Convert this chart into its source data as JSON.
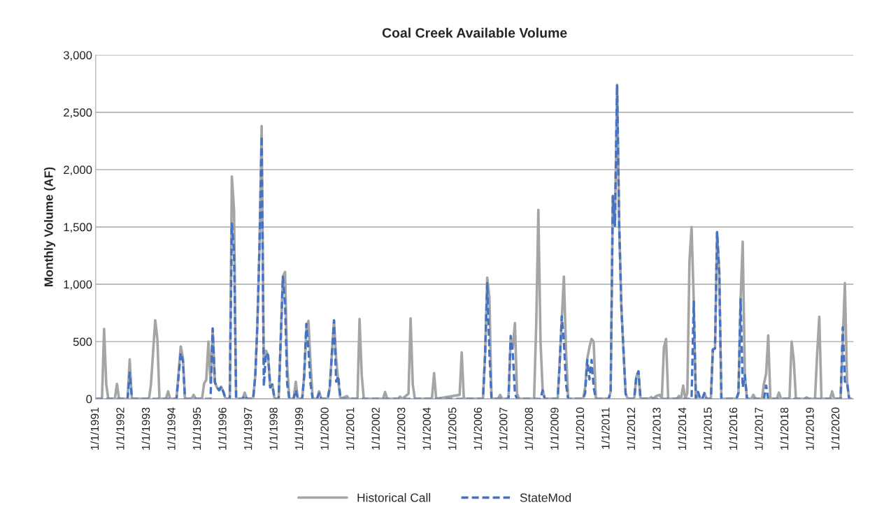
{
  "chart_data": {
    "type": "line",
    "title": "Coal Creek Available Volume",
    "ylabel": "Monthly Volume (AF)",
    "xlim": [
      "1991-01-01",
      "2020-09-01"
    ],
    "xticks": [
      {
        "value": "1991-01-01",
        "label": "1/1/1991"
      },
      {
        "value": "1992-01-01",
        "label": "1/1/1992"
      },
      {
        "value": "1993-01-01",
        "label": "1/1/1993"
      },
      {
        "value": "1994-01-01",
        "label": "1/1/1994"
      },
      {
        "value": "1995-01-01",
        "label": "1/1/1995"
      },
      {
        "value": "1996-01-01",
        "label": "1/1/1996"
      },
      {
        "value": "1997-01-01",
        "label": "1/1/1997"
      },
      {
        "value": "1998-01-01",
        "label": "1/1/1998"
      },
      {
        "value": "1999-01-01",
        "label": "1/1/1999"
      },
      {
        "value": "2000-01-01",
        "label": "1/1/2000"
      },
      {
        "value": "2001-01-01",
        "label": "1/1/2001"
      },
      {
        "value": "2002-01-01",
        "label": "1/1/2002"
      },
      {
        "value": "2003-01-01",
        "label": "1/1/2003"
      },
      {
        "value": "2004-01-01",
        "label": "1/1/2004"
      },
      {
        "value": "2005-01-01",
        "label": "1/1/2005"
      },
      {
        "value": "2006-01-01",
        "label": "1/1/2006"
      },
      {
        "value": "2007-01-01",
        "label": "1/1/2007"
      },
      {
        "value": "2008-01-01",
        "label": "1/1/2008"
      },
      {
        "value": "2009-01-01",
        "label": "1/1/2009"
      },
      {
        "value": "2010-01-01",
        "label": "1/1/2010"
      },
      {
        "value": "2011-01-01",
        "label": "1/1/2011"
      },
      {
        "value": "2012-01-01",
        "label": "1/1/2012"
      },
      {
        "value": "2013-01-01",
        "label": "1/1/2013"
      },
      {
        "value": "2014-01-01",
        "label": "1/1/2014"
      },
      {
        "value": "2015-01-01",
        "label": "1/1/2015"
      },
      {
        "value": "2016-01-01",
        "label": "1/1/2016"
      },
      {
        "value": "2017-01-01",
        "label": "1/1/2017"
      },
      {
        "value": "2018-01-01",
        "label": "1/1/2018"
      },
      {
        "value": "2019-01-01",
        "label": "1/1/2019"
      },
      {
        "value": "2020-01-01",
        "label": "1/1/2020"
      }
    ],
    "ylim": [
      0,
      3000
    ],
    "yticks": [
      0,
      500,
      {
        "value": 1000,
        "label": "1,000"
      },
      {
        "value": 1500,
        "label": "1,500"
      },
      {
        "value": 2000,
        "label": "2,000"
      },
      {
        "value": 2500,
        "label": "2,500"
      },
      {
        "value": 3000,
        "label": "3,000"
      }
    ],
    "grid": "y",
    "legend": "bottom",
    "marker": "none",
    "series": [
      {
        "name": "Historical Call",
        "color": "#a5a5a5",
        "line_style": "solid",
        "x": [
          "1991-01",
          "1991-04",
          "1991-05",
          "1991-06",
          "1991-07",
          "1991-10",
          "1991-11",
          "1991-12",
          "1992-04",
          "1992-05",
          "1992-06",
          "1993-02",
          "1993-03",
          "1993-05",
          "1993-06",
          "1993-07",
          "1993-10",
          "1993-11",
          "1993-12",
          "1994-03",
          "1994-05",
          "1994-06",
          "1994-07",
          "1994-10",
          "1994-11",
          "1994-12",
          "1995-03",
          "1995-04",
          "1995-05",
          "1995-06",
          "1995-07",
          "1995-08",
          "1995-09",
          "1995-10",
          "1995-11",
          "1995-12",
          "1996-01",
          "1996-02",
          "1996-04",
          "1996-05",
          "1996-06",
          "1996-07",
          "1996-10",
          "1996-11",
          "1996-12",
          "1997-03",
          "1997-04",
          "1997-05",
          "1997-06",
          "1997-07",
          "1997-08",
          "1997-09",
          "1997-10",
          "1997-11",
          "1997-12",
          "1998-01",
          "1998-03",
          "1998-05",
          "1998-06",
          "1998-07",
          "1998-08",
          "1998-10",
          "1998-11",
          "1998-12",
          "1999-02",
          "1999-03",
          "1999-04",
          "1999-05",
          "1999-06",
          "1999-07",
          "1999-09",
          "1999-10",
          "1999-11",
          "2000-02",
          "2000-03",
          "2000-04",
          "2000-05",
          "2000-06",
          "2000-07",
          "2000-08",
          "2000-11",
          "2000-12",
          "2001-04",
          "2001-05",
          "2001-06",
          "2001-07",
          "2002-04",
          "2002-05",
          "2002-06",
          "2002-11",
          "2002-12",
          "2003-01",
          "2003-04",
          "2003-05",
          "2003-06",
          "2003-07",
          "2004-03",
          "2004-04",
          "2004-05",
          "2005-04",
          "2005-05",
          "2005-06",
          "2006-03",
          "2006-04",
          "2006-05",
          "2006-06",
          "2006-07",
          "2006-10",
          "2006-11",
          "2006-12",
          "2007-03",
          "2007-04",
          "2007-05",
          "2007-06",
          "2007-07",
          "2007-08",
          "2008-03",
          "2008-04",
          "2008-05",
          "2008-06",
          "2008-07",
          "2008-08",
          "2009-02",
          "2009-03",
          "2009-04",
          "2009-05",
          "2009-06",
          "2009-07",
          "2010-02",
          "2010-03",
          "2010-04",
          "2010-05",
          "2010-06",
          "2010-07",
          "2010-08",
          "2011-02",
          "2011-03",
          "2011-04",
          "2011-05",
          "2011-06",
          "2011-07",
          "2011-08",
          "2011-09",
          "2011-10",
          "2011-11",
          "2012-02",
          "2012-03",
          "2012-04",
          "2012-05",
          "2012-09",
          "2012-10",
          "2012-11",
          "2012-12",
          "2013-01",
          "2013-02",
          "2013-03",
          "2013-04",
          "2013-05",
          "2013-06",
          "2013-10",
          "2013-11",
          "2013-12",
          "2014-01",
          "2014-02",
          "2014-03",
          "2014-04",
          "2014-05",
          "2014-06",
          "2014-07",
          "2014-08",
          "2014-09",
          "2014-10",
          "2014-11",
          "2014-12",
          "2015-02",
          "2015-03",
          "2015-04",
          "2015-05",
          "2015-06",
          "2015-07",
          "2016-02",
          "2016-03",
          "2016-04",
          "2016-05",
          "2016-06",
          "2016-07",
          "2016-09",
          "2016-10",
          "2016-11",
          "2017-02",
          "2017-03",
          "2017-04",
          "2017-05",
          "2017-06",
          "2017-09",
          "2017-10",
          "2017-11",
          "2018-03",
          "2018-04",
          "2018-05",
          "2018-06",
          "2018-10",
          "2018-11",
          "2018-12",
          "2019-03",
          "2019-04",
          "2019-05",
          "2019-06",
          "2019-10",
          "2019-11",
          "2019-12",
          "2020-03",
          "2020-04",
          "2020-05",
          "2020-06",
          "2020-07",
          "2020-08"
        ],
        "values": [
          0,
          0,
          610,
          125,
          0,
          0,
          130,
          0,
          0,
          345,
          0,
          0,
          125,
          686,
          523,
          0,
          0,
          65,
          0,
          0,
          458,
          360,
          0,
          0,
          35,
          0,
          0,
          136,
          167,
          500,
          140,
          610,
          146,
          100,
          75,
          106,
          60,
          0,
          0,
          1940,
          1650,
          0,
          0,
          55,
          0,
          0,
          200,
          650,
          1350,
          2380,
          300,
          420,
          380,
          100,
          125,
          0,
          0,
          1070,
          1107,
          300,
          0,
          0,
          150,
          0,
          0,
          200,
          600,
          680,
          300,
          0,
          0,
          65,
          0,
          0,
          100,
          400,
          680,
          350,
          150,
          0,
          25,
          0,
          0,
          696,
          207,
          0,
          0,
          60,
          0,
          0,
          20,
          0,
          45,
          702,
          126,
          0,
          0,
          225,
          0,
          35,
          405,
          0,
          0,
          400,
          1058,
          880,
          0,
          0,
          35,
          0,
          0,
          520,
          450,
          661,
          45,
          0,
          0,
          660,
          1648,
          500,
          80,
          0,
          0,
          300,
          700,
          1066,
          410,
          0,
          0,
          100,
          350,
          450,
          523,
          500,
          0,
          0,
          65,
          1770,
          1510,
          2741,
          1510,
          800,
          411,
          45,
          0,
          0,
          190,
          240,
          0,
          0,
          15,
          0,
          20,
          30,
          35,
          0,
          450,
          523,
          0,
          0,
          25,
          0,
          116,
          0,
          50,
          1205,
          1500,
          850,
          0,
          60,
          0,
          0,
          50,
          0,
          0,
          430,
          440,
          1455,
          1100,
          0,
          0,
          50,
          869,
          1372,
          200,
          0,
          0,
          35,
          0,
          0,
          130,
          220,
          553,
          0,
          0,
          55,
          0,
          0,
          500,
          340,
          0,
          0,
          14,
          0,
          0,
          400,
          716,
          0,
          0,
          65,
          0,
          0,
          510,
          1011,
          150,
          0,
          0
        ]
      },
      {
        "name": "StateMod",
        "color": "#4472c4",
        "line_style": "dashed",
        "x": [
          "1991-01",
          "1992-04",
          "1992-05",
          "1992-06",
          "1994-03",
          "1994-05",
          "1994-06",
          "1994-07",
          "1995-07",
          "1995-08",
          "1995-09",
          "1995-10",
          "1995-11",
          "1995-12",
          "1996-01",
          "1996-02",
          "1996-04",
          "1996-05",
          "1996-06",
          "1996-07",
          "1996-10",
          "1996-11",
          "1996-12",
          "1997-03",
          "1997-04",
          "1997-05",
          "1997-06",
          "1997-07",
          "1997-08",
          "1997-09",
          "1997-10",
          "1997-11",
          "1997-12",
          "1998-01",
          "1998-03",
          "1998-05",
          "1998-06",
          "1998-07",
          "1998-08",
          "1998-10",
          "1998-11",
          "1998-12",
          "1999-02",
          "1999-03",
          "1999-04",
          "1999-05",
          "1999-06",
          "1999-07",
          "1999-09",
          "1999-10",
          "1999-11",
          "2000-02",
          "2000-03",
          "2000-04",
          "2000-05",
          "2000-06",
          "2000-07",
          "2000-08",
          "2006-03",
          "2006-04",
          "2006-05",
          "2006-06",
          "2006-07",
          "2007-03",
          "2007-04",
          "2007-05",
          "2007-06",
          "2007-07",
          "2008-06",
          "2008-07",
          "2008-08",
          "2009-02",
          "2009-03",
          "2009-04",
          "2009-05",
          "2009-06",
          "2009-07",
          "2010-02",
          "2010-03",
          "2010-04",
          "2010-05",
          "2010-06",
          "2010-07",
          "2010-08",
          "2011-02",
          "2011-03",
          "2011-04",
          "2011-05",
          "2011-06",
          "2011-07",
          "2011-08",
          "2011-09",
          "2011-10",
          "2011-11",
          "2012-02",
          "2012-03",
          "2012-04",
          "2012-05",
          "2014-05",
          "2014-06",
          "2014-07",
          "2014-08",
          "2014-09",
          "2014-10",
          "2014-11",
          "2014-12",
          "2015-02",
          "2015-03",
          "2015-04",
          "2015-05",
          "2015-06",
          "2015-07",
          "2016-02",
          "2016-03",
          "2016-04",
          "2016-05",
          "2016-06",
          "2016-07",
          "2017-03",
          "2017-04",
          "2017-05",
          "2020-03",
          "2020-04",
          "2020-05",
          "2020-06",
          "2020-07",
          "2020-08"
        ],
        "values": [
          0,
          0,
          228,
          0,
          0,
          400,
          330,
          0,
          0,
          615,
          146,
          100,
          75,
          106,
          60,
          0,
          0,
          1530,
          1290,
          0,
          0,
          30,
          0,
          0,
          200,
          650,
          1350,
          2290,
          110,
          400,
          380,
          100,
          125,
          0,
          0,
          1065,
          820,
          130,
          0,
          0,
          75,
          0,
          0,
          200,
          655,
          430,
          125,
          0,
          0,
          50,
          0,
          0,
          100,
          400,
          686,
          150,
          200,
          0,
          0,
          400,
          1010,
          400,
          0,
          0,
          550,
          410,
          45,
          0,
          0,
          75,
          0,
          0,
          300,
          720,
          500,
          126,
          0,
          0,
          50,
          340,
          170,
          340,
          100,
          0,
          0,
          65,
          1770,
          1510,
          2741,
          1510,
          800,
          411,
          45,
          0,
          0,
          190,
          240,
          0,
          0,
          850,
          0,
          60,
          0,
          0,
          50,
          0,
          0,
          430,
          440,
          1455,
          1100,
          0,
          0,
          50,
          869,
          100,
          207,
          0,
          0,
          116,
          0,
          0,
          625,
          150,
          146,
          0,
          0
        ]
      }
    ]
  }
}
